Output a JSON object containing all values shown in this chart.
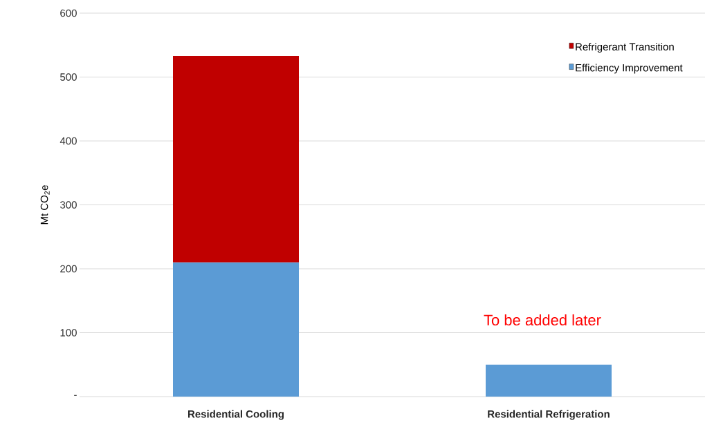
{
  "chart_data": {
    "type": "bar",
    "stacked": true,
    "ylabel": "Mt CO$_{2}$e",
    "categories": [
      "Residential Cooling",
      "Residential Refrigeration"
    ],
    "series": [
      {
        "name": "Efficiency Improvement",
        "color": "#5b9bd5",
        "values": [
          210,
          50
        ]
      },
      {
        "name": "Refrigerant Transition",
        "color": "#c00000",
        "values": [
          323,
          null
        ]
      }
    ],
    "ylim": [
      0,
      600
    ],
    "yticks": [
      {
        "value": 0,
        "label": "-"
      },
      100,
      200,
      300,
      400,
      500,
      600
    ],
    "grid": "y",
    "legend": "top right",
    "annotations": [
      "To be added later"
    ]
  }
}
